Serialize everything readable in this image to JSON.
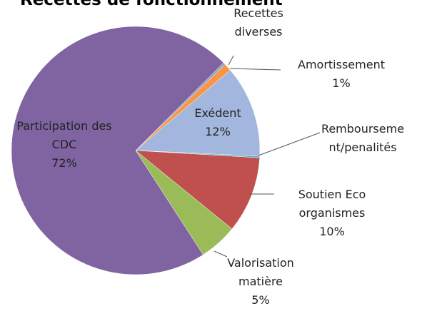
{
  "chart_data": {
    "type": "pie",
    "title": "Recettes de fonctionnement",
    "categories": [
      "Recettes diverses",
      "Amortissement",
      "Exédent",
      "Remboursement/penalités",
      "Soutien Eco organismes",
      "Valorisation matière",
      "Participation des CDC"
    ],
    "values": [
      0.3,
      1,
      12,
      0.2,
      10,
      5,
      72
    ],
    "value_labels": [
      null,
      "1%",
      "12%",
      null,
      "10%",
      "5%",
      "72%"
    ],
    "colors": [
      "#8fa4c9",
      "#f79646",
      "#a3b6de",
      "#4bacc6",
      "#c0504d",
      "#9bbb59",
      "#8064a2"
    ]
  }
}
